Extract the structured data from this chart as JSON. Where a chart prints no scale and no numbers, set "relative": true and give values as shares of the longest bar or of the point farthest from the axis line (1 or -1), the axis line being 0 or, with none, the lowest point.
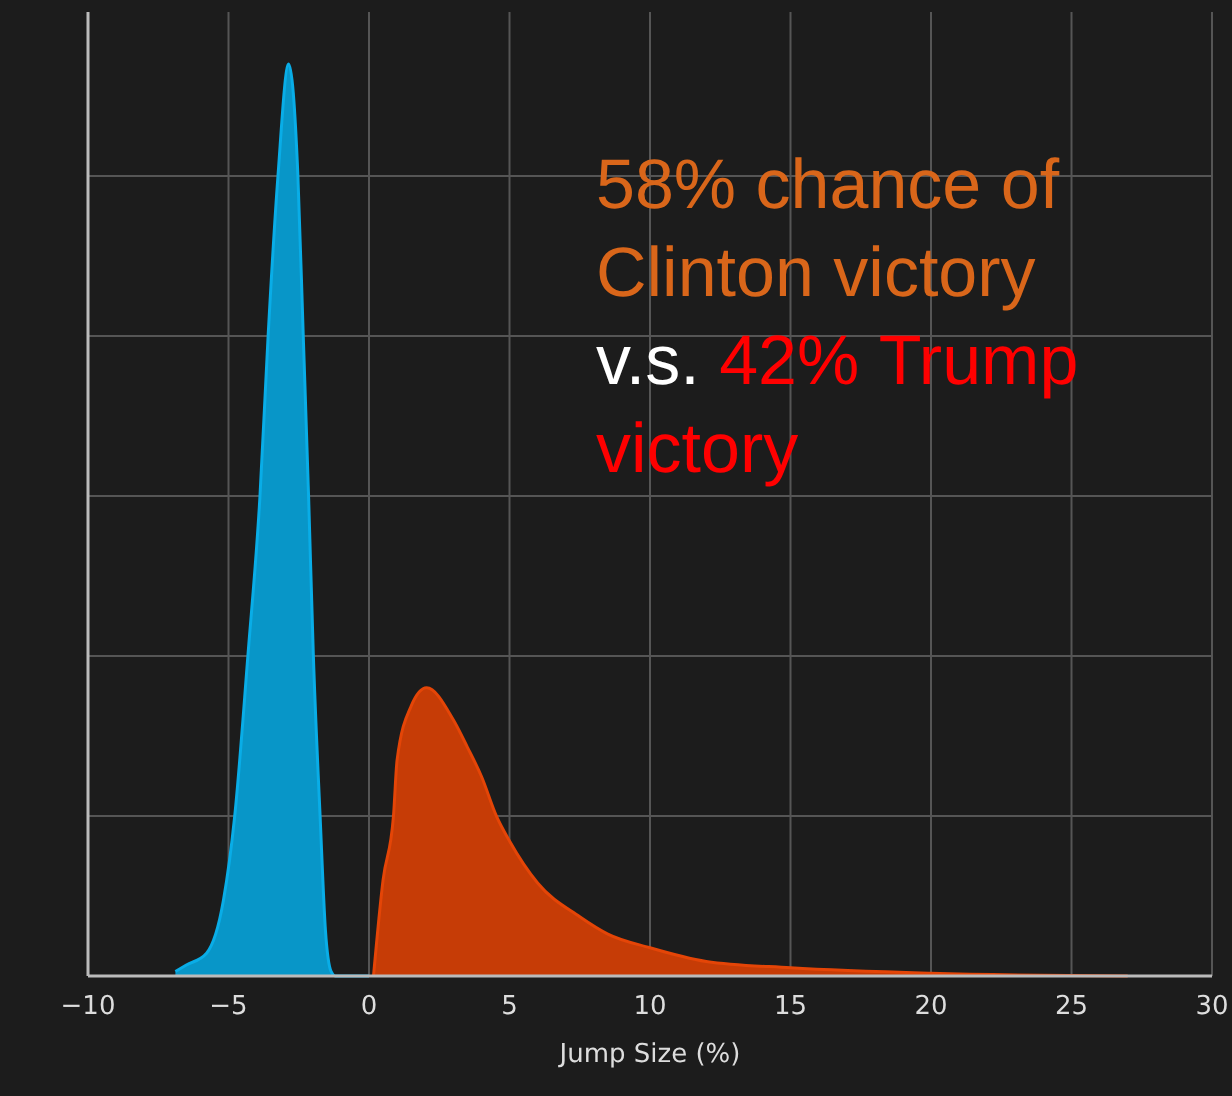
{
  "chart_data": {
    "type": "area",
    "relative": true,
    "xlabel": "Jump Size (%)",
    "xlim": [
      -10,
      30
    ],
    "xticks": [
      {
        "value": -10,
        "label": "−10"
      },
      {
        "value": -5,
        "label": "−5"
      },
      0,
      5,
      10,
      15,
      20,
      25,
      30
    ],
    "grid": true,
    "annotations": [
      "58% chance of Clinton victory",
      "v.s.",
      "42% Trump victory"
    ],
    "series": [
      {
        "color": "#0896c8",
        "x": [
          -6.89,
          -6.5,
          -5.78,
          -5.18,
          -4.78,
          -4.31,
          -3.88,
          -3.59,
          -3.24,
          -2.86,
          -2.53,
          -2.34,
          -2.15,
          -1.98,
          -1.74,
          -1.55,
          -1.35,
          -1.2,
          0
        ],
        "values": [
          0.005,
          0.012,
          0.025,
          0.083,
          0.175,
          0.351,
          0.526,
          0.702,
          0.877,
          1,
          0.877,
          0.702,
          0.526,
          0.351,
          0.175,
          0.05,
          0.005,
          0,
          0
        ]
      },
      {
        "color": "#c63c06",
        "x": [
          0.16,
          0.5,
          0.87,
          1,
          1.5,
          2.05,
          3,
          3.5,
          4,
          4.54,
          5,
          6,
          7.5,
          8.5,
          10,
          12,
          15,
          20,
          27
        ],
        "values": [
          0,
          0.105,
          0.175,
          0.237,
          0.296,
          0.316,
          0.281,
          0.251,
          0.219,
          0.175,
          0.148,
          0.102,
          0.065,
          0.046,
          0.031,
          0.016,
          0.009,
          0.003,
          0
        ]
      }
    ]
  }
}
